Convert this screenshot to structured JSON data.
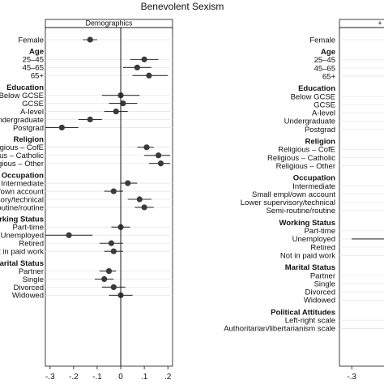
{
  "title": "Benevolent Sexism",
  "chart_data": [
    {
      "type": "scatter",
      "subtitle": "Demographics",
      "xlabel": "",
      "ylabel": "",
      "xlim": [
        -0.32,
        0.22
      ],
      "ticks": [
        {
          "value": -0.3,
          "label": "-.3"
        },
        {
          "value": -0.2,
          "label": "-.2"
        },
        {
          "value": -0.1,
          "label": "-.1"
        },
        {
          "value": 0,
          "label": "0"
        },
        {
          "value": 0.1,
          "label": ".1"
        },
        {
          "value": 0.2,
          "label": ".2"
        }
      ],
      "rows": [
        {
          "kind": "item",
          "label": "Female",
          "est": -0.13,
          "lo": -0.16,
          "hi": -0.1
        },
        {
          "kind": "gap"
        },
        {
          "kind": "group",
          "label": "Age"
        },
        {
          "kind": "item",
          "label": "25–45",
          "est": 0.1,
          "lo": 0.04,
          "hi": 0.16
        },
        {
          "kind": "item",
          "label": "45–65",
          "est": 0.07,
          "lo": 0.01,
          "hi": 0.13
        },
        {
          "kind": "item",
          "label": "65+",
          "est": 0.12,
          "lo": 0.05,
          "hi": 0.2
        },
        {
          "kind": "gap"
        },
        {
          "kind": "group",
          "label": "Education"
        },
        {
          "kind": "item",
          "label": "Below GCSE",
          "est": 0.0,
          "lo": -0.08,
          "hi": 0.08
        },
        {
          "kind": "item",
          "label": "GCSE",
          "est": 0.01,
          "lo": -0.05,
          "hi": 0.07
        },
        {
          "kind": "item",
          "label": "A-level",
          "est": -0.02,
          "lo": -0.07,
          "hi": 0.03
        },
        {
          "kind": "item",
          "label": "Undergraduate",
          "est": -0.13,
          "lo": -0.18,
          "hi": -0.08
        },
        {
          "kind": "item",
          "label": "Postgrad",
          "est": -0.25,
          "lo": -0.32,
          "hi": -0.18
        },
        {
          "kind": "gap"
        },
        {
          "kind": "group",
          "label": "Religion"
        },
        {
          "kind": "item",
          "label": "Religious – CofE",
          "est": 0.11,
          "lo": 0.07,
          "hi": 0.14
        },
        {
          "kind": "item",
          "label": "Religious – Catholic",
          "est": 0.16,
          "lo": 0.1,
          "hi": 0.21
        },
        {
          "kind": "item",
          "label": "Religious – Other",
          "est": 0.17,
          "lo": 0.12,
          "hi": 0.21
        },
        {
          "kind": "gap"
        },
        {
          "kind": "group",
          "label": "Occupation"
        },
        {
          "kind": "item",
          "label": "Intermediate",
          "est": 0.03,
          "lo": 0.0,
          "hi": 0.07
        },
        {
          "kind": "item",
          "label": "Small empl/own account",
          "est": -0.03,
          "lo": -0.07,
          "hi": 0.01
        },
        {
          "kind": "item",
          "label": "Lower supervisory/technical",
          "est": 0.08,
          "lo": 0.03,
          "hi": 0.13
        },
        {
          "kind": "item",
          "label": "Semi-routine/routine",
          "est": 0.1,
          "lo": 0.06,
          "hi": 0.14
        },
        {
          "kind": "gap"
        },
        {
          "kind": "group",
          "label": "Working Status"
        },
        {
          "kind": "item",
          "label": "Part-time",
          "est": 0.0,
          "lo": -0.04,
          "hi": 0.04
        },
        {
          "kind": "item",
          "label": "Unemployed",
          "est": -0.22,
          "lo": -0.32,
          "hi": -0.12
        },
        {
          "kind": "item",
          "label": "Retired",
          "est": -0.04,
          "lo": -0.09,
          "hi": 0.01
        },
        {
          "kind": "item",
          "label": "Not in paid work",
          "est": -0.03,
          "lo": -0.07,
          "hi": 0.01
        },
        {
          "kind": "gap"
        },
        {
          "kind": "group",
          "label": "Marital Status"
        },
        {
          "kind": "item",
          "label": "Partner",
          "est": -0.05,
          "lo": -0.09,
          "hi": -0.02
        },
        {
          "kind": "item",
          "label": "Single",
          "est": -0.07,
          "lo": -0.11,
          "hi": -0.03
        },
        {
          "kind": "item",
          "label": "Divorced",
          "est": -0.03,
          "lo": -0.08,
          "hi": 0.02
        },
        {
          "kind": "item",
          "label": "Widowed",
          "est": 0.0,
          "lo": -0.05,
          "hi": 0.05
        }
      ]
    },
    {
      "type": "scatter",
      "subtitle": "+",
      "xlabel": "",
      "ylabel": "",
      "xlim": [
        -0.33,
        -0.13
      ],
      "ticks": [
        {
          "value": -0.3,
          "label": "-.3"
        },
        {
          "value": -0.2,
          "label": "-.2"
        }
      ],
      "rows": [
        {
          "kind": "item",
          "label": "Female",
          "est": -0.19,
          "lo": -0.21,
          "hi": -0.17
        },
        {
          "kind": "gap"
        },
        {
          "kind": "group",
          "label": "Age"
        },
        {
          "kind": "item",
          "label": "25–45",
          "est": null
        },
        {
          "kind": "item",
          "label": "45–65",
          "est": null
        },
        {
          "kind": "item",
          "label": "65+",
          "est": null
        },
        {
          "kind": "gap"
        },
        {
          "kind": "group",
          "label": "Education"
        },
        {
          "kind": "item",
          "label": "Below GCSE",
          "est": null
        },
        {
          "kind": "item",
          "label": "GCSE",
          "est": null
        },
        {
          "kind": "item",
          "label": "A-level",
          "est": null
        },
        {
          "kind": "item",
          "label": "Undergraduate",
          "est": null
        },
        {
          "kind": "item",
          "label": "Postgrad",
          "est": null
        },
        {
          "kind": "gap"
        },
        {
          "kind": "group",
          "label": "Religion"
        },
        {
          "kind": "item",
          "label": "Religious – CofE",
          "est": null
        },
        {
          "kind": "item",
          "label": "Religious – Catholic",
          "est": null
        },
        {
          "kind": "item",
          "label": "Religious – Other",
          "est": null
        },
        {
          "kind": "gap"
        },
        {
          "kind": "group",
          "label": "Occupation"
        },
        {
          "kind": "item",
          "label": "Intermediate",
          "est": null
        },
        {
          "kind": "item",
          "label": "Small empl/own account",
          "est": null
        },
        {
          "kind": "item",
          "label": "Lower supervisory/technical",
          "est": null
        },
        {
          "kind": "item",
          "label": "Semi-routine/routine",
          "est": null
        },
        {
          "kind": "gap"
        },
        {
          "kind": "group",
          "label": "Working Status"
        },
        {
          "kind": "item",
          "label": "Part-time",
          "est": null
        },
        {
          "kind": "item",
          "label": "Unemployed",
          "est": -0.21,
          "lo": -0.3,
          "hi": -0.15
        },
        {
          "kind": "item",
          "label": "Retired",
          "est": null
        },
        {
          "kind": "item",
          "label": "Not in paid work",
          "est": null
        },
        {
          "kind": "gap"
        },
        {
          "kind": "group",
          "label": "Marital Status"
        },
        {
          "kind": "item",
          "label": "Partner",
          "est": null
        },
        {
          "kind": "item",
          "label": "Single",
          "est": null
        },
        {
          "kind": "item",
          "label": "Divorced",
          "est": null
        },
        {
          "kind": "item",
          "label": "Widowed",
          "est": null
        },
        {
          "kind": "gap"
        },
        {
          "kind": "group",
          "label": "Political Attitudes"
        },
        {
          "kind": "item",
          "label": "Left-right scale",
          "est": null
        },
        {
          "kind": "item",
          "label": "Authoritarian/libertarianism scale",
          "est": null
        }
      ]
    }
  ]
}
